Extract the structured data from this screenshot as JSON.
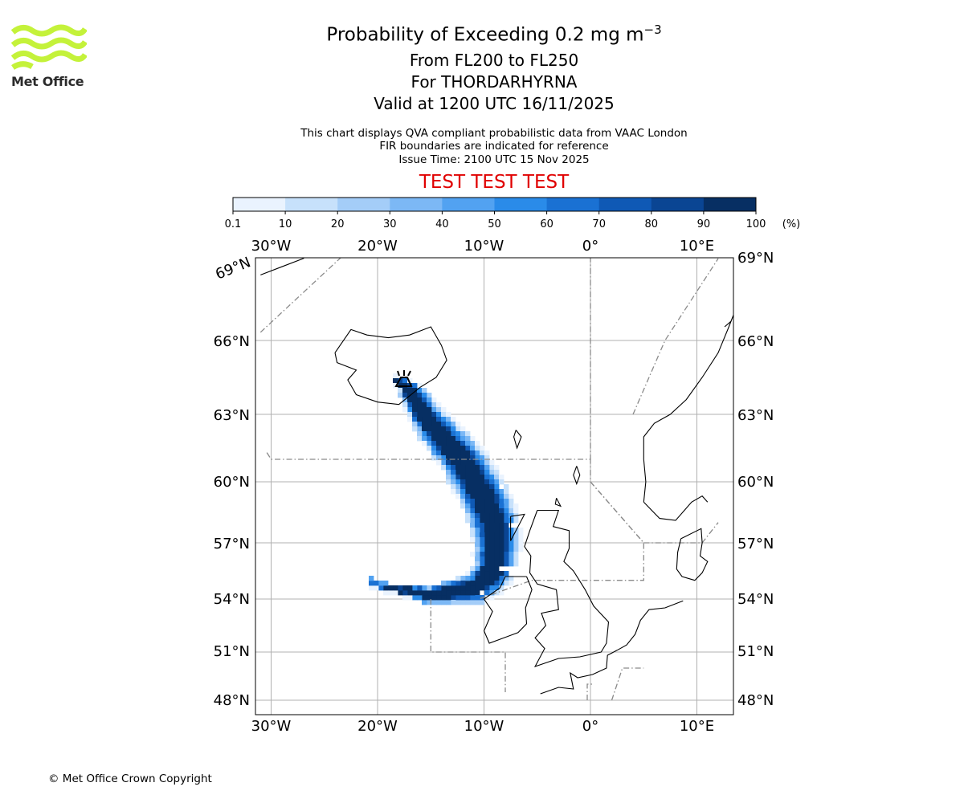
{
  "header": {
    "title_prefix": "Probability of Exceeding 0.2 mg m",
    "title_exponent": "−3",
    "flight_levels": "From FL200 to FL250",
    "volcano": "For THORDARHYRNA",
    "valid_time": "Valid at 1200 UTC 16/11/2025",
    "notes": [
      "This chart displays QVA compliant probabilistic data from VAAC London",
      "FIR boundaries are indicated for reference",
      "Issue Time: 2100 UTC 15 Nov 2025"
    ],
    "test_banner": "TEST TEST TEST"
  },
  "logo": {
    "text": "Met Office",
    "color": "#c4f23a"
  },
  "colorbar": {
    "ticks": [
      "0.1",
      "10",
      "20",
      "30",
      "40",
      "50",
      "60",
      "70",
      "80",
      "90",
      "100"
    ],
    "unit": "(%)",
    "colors": [
      "#eaf3fe",
      "#c7e1fb",
      "#a4cdf8",
      "#7cb8f5",
      "#52a2f1",
      "#2a8be9",
      "#1a71d3",
      "#0f59b5",
      "#0a4593",
      "#072f63"
    ]
  },
  "map": {
    "lon_labels": [
      "30°W",
      "20°W",
      "10°W",
      "0°",
      "10°E"
    ],
    "lat_labels_left": [
      "69°N",
      "66°N",
      "63°N",
      "60°N",
      "57°N",
      "54°N",
      "51°N",
      "48°N"
    ],
    "lat_labels_right": [
      "69°N",
      "66°N",
      "63°N",
      "60°N",
      "57°N",
      "54°N",
      "51°N",
      "48°N"
    ],
    "volcano_symbol": "volcano-icon"
  },
  "plume": {
    "description_points_lon_lat": [
      [
        -18.3,
        64.4
      ],
      [
        -17.0,
        64.0
      ],
      [
        -15.0,
        62.6
      ],
      [
        -12.0,
        61.0
      ],
      [
        -10.0,
        59.3
      ],
      [
        -8.8,
        57.6
      ],
      [
        -8.9,
        55.7
      ],
      [
        -10.5,
        54.6
      ],
      [
        -15.0,
        54.2
      ],
      [
        -19.0,
        54.6
      ],
      [
        -21.0,
        55.0
      ]
    ],
    "probability_percent_core": 95,
    "probability_percent_edge": 5
  },
  "footer": {
    "copyright": "© Met Office Crown Copyright"
  }
}
